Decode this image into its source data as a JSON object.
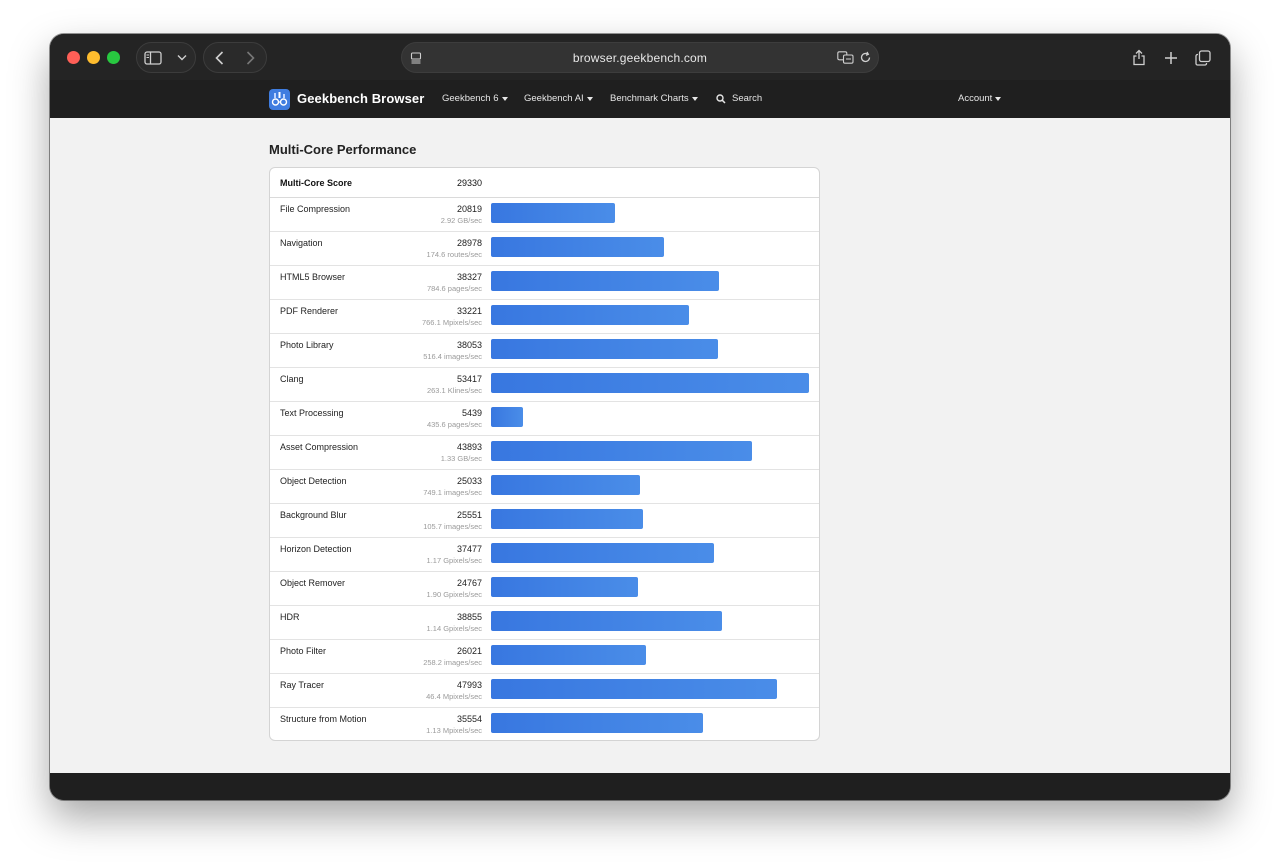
{
  "browser": {
    "url": "browser.geekbench.com"
  },
  "nav": {
    "brand": "Geekbench Browser",
    "items": [
      "Geekbench 6",
      "Geekbench AI",
      "Benchmark Charts"
    ],
    "search_label": "Search",
    "account_label": "Account"
  },
  "page": {
    "title": "Multi-Core Performance",
    "total_label": "Multi-Core Score",
    "total_score": "29330"
  },
  "chart_data": {
    "type": "bar",
    "orientation": "horizontal",
    "max_value": 53417,
    "color": "#3f7fe3",
    "rows": [
      {
        "name": "File Compression",
        "score": 20819,
        "unit": "2.92 GB/sec"
      },
      {
        "name": "Navigation",
        "score": 28978,
        "unit": "174.6 routes/sec"
      },
      {
        "name": "HTML5 Browser",
        "score": 38327,
        "unit": "784.6 pages/sec"
      },
      {
        "name": "PDF Renderer",
        "score": 33221,
        "unit": "766.1 Mpixels/sec"
      },
      {
        "name": "Photo Library",
        "score": 38053,
        "unit": "516.4 images/sec"
      },
      {
        "name": "Clang",
        "score": 53417,
        "unit": "263.1 Klines/sec"
      },
      {
        "name": "Text Processing",
        "score": 5439,
        "unit": "435.6 pages/sec"
      },
      {
        "name": "Asset Compression",
        "score": 43893,
        "unit": "1.33 GB/sec"
      },
      {
        "name": "Object Detection",
        "score": 25033,
        "unit": "749.1 images/sec"
      },
      {
        "name": "Background Blur",
        "score": 25551,
        "unit": "105.7 images/sec"
      },
      {
        "name": "Horizon Detection",
        "score": 37477,
        "unit": "1.17 Gpixels/sec"
      },
      {
        "name": "Object Remover",
        "score": 24767,
        "unit": "1.90 Gpixels/sec"
      },
      {
        "name": "HDR",
        "score": 38855,
        "unit": "1.14 Gpixels/sec"
      },
      {
        "name": "Photo Filter",
        "score": 26021,
        "unit": "258.2 images/sec"
      },
      {
        "name": "Ray Tracer",
        "score": 47993,
        "unit": "46.4 Mpixels/sec"
      },
      {
        "name": "Structure from Motion",
        "score": 35554,
        "unit": "1.13 Mpixels/sec"
      }
    ]
  },
  "icons": {
    "sidebar": "sidebar-icon",
    "chevron": "chevron-down-icon",
    "back": "back-arrow-icon",
    "forward": "forward-arrow-icon",
    "reader": "reader-icon",
    "translate": "translate-icon",
    "reload": "reload-icon",
    "share": "share-icon",
    "new_tab": "plus-icon",
    "tabs": "tabs-overview-icon",
    "search": "search-icon"
  }
}
